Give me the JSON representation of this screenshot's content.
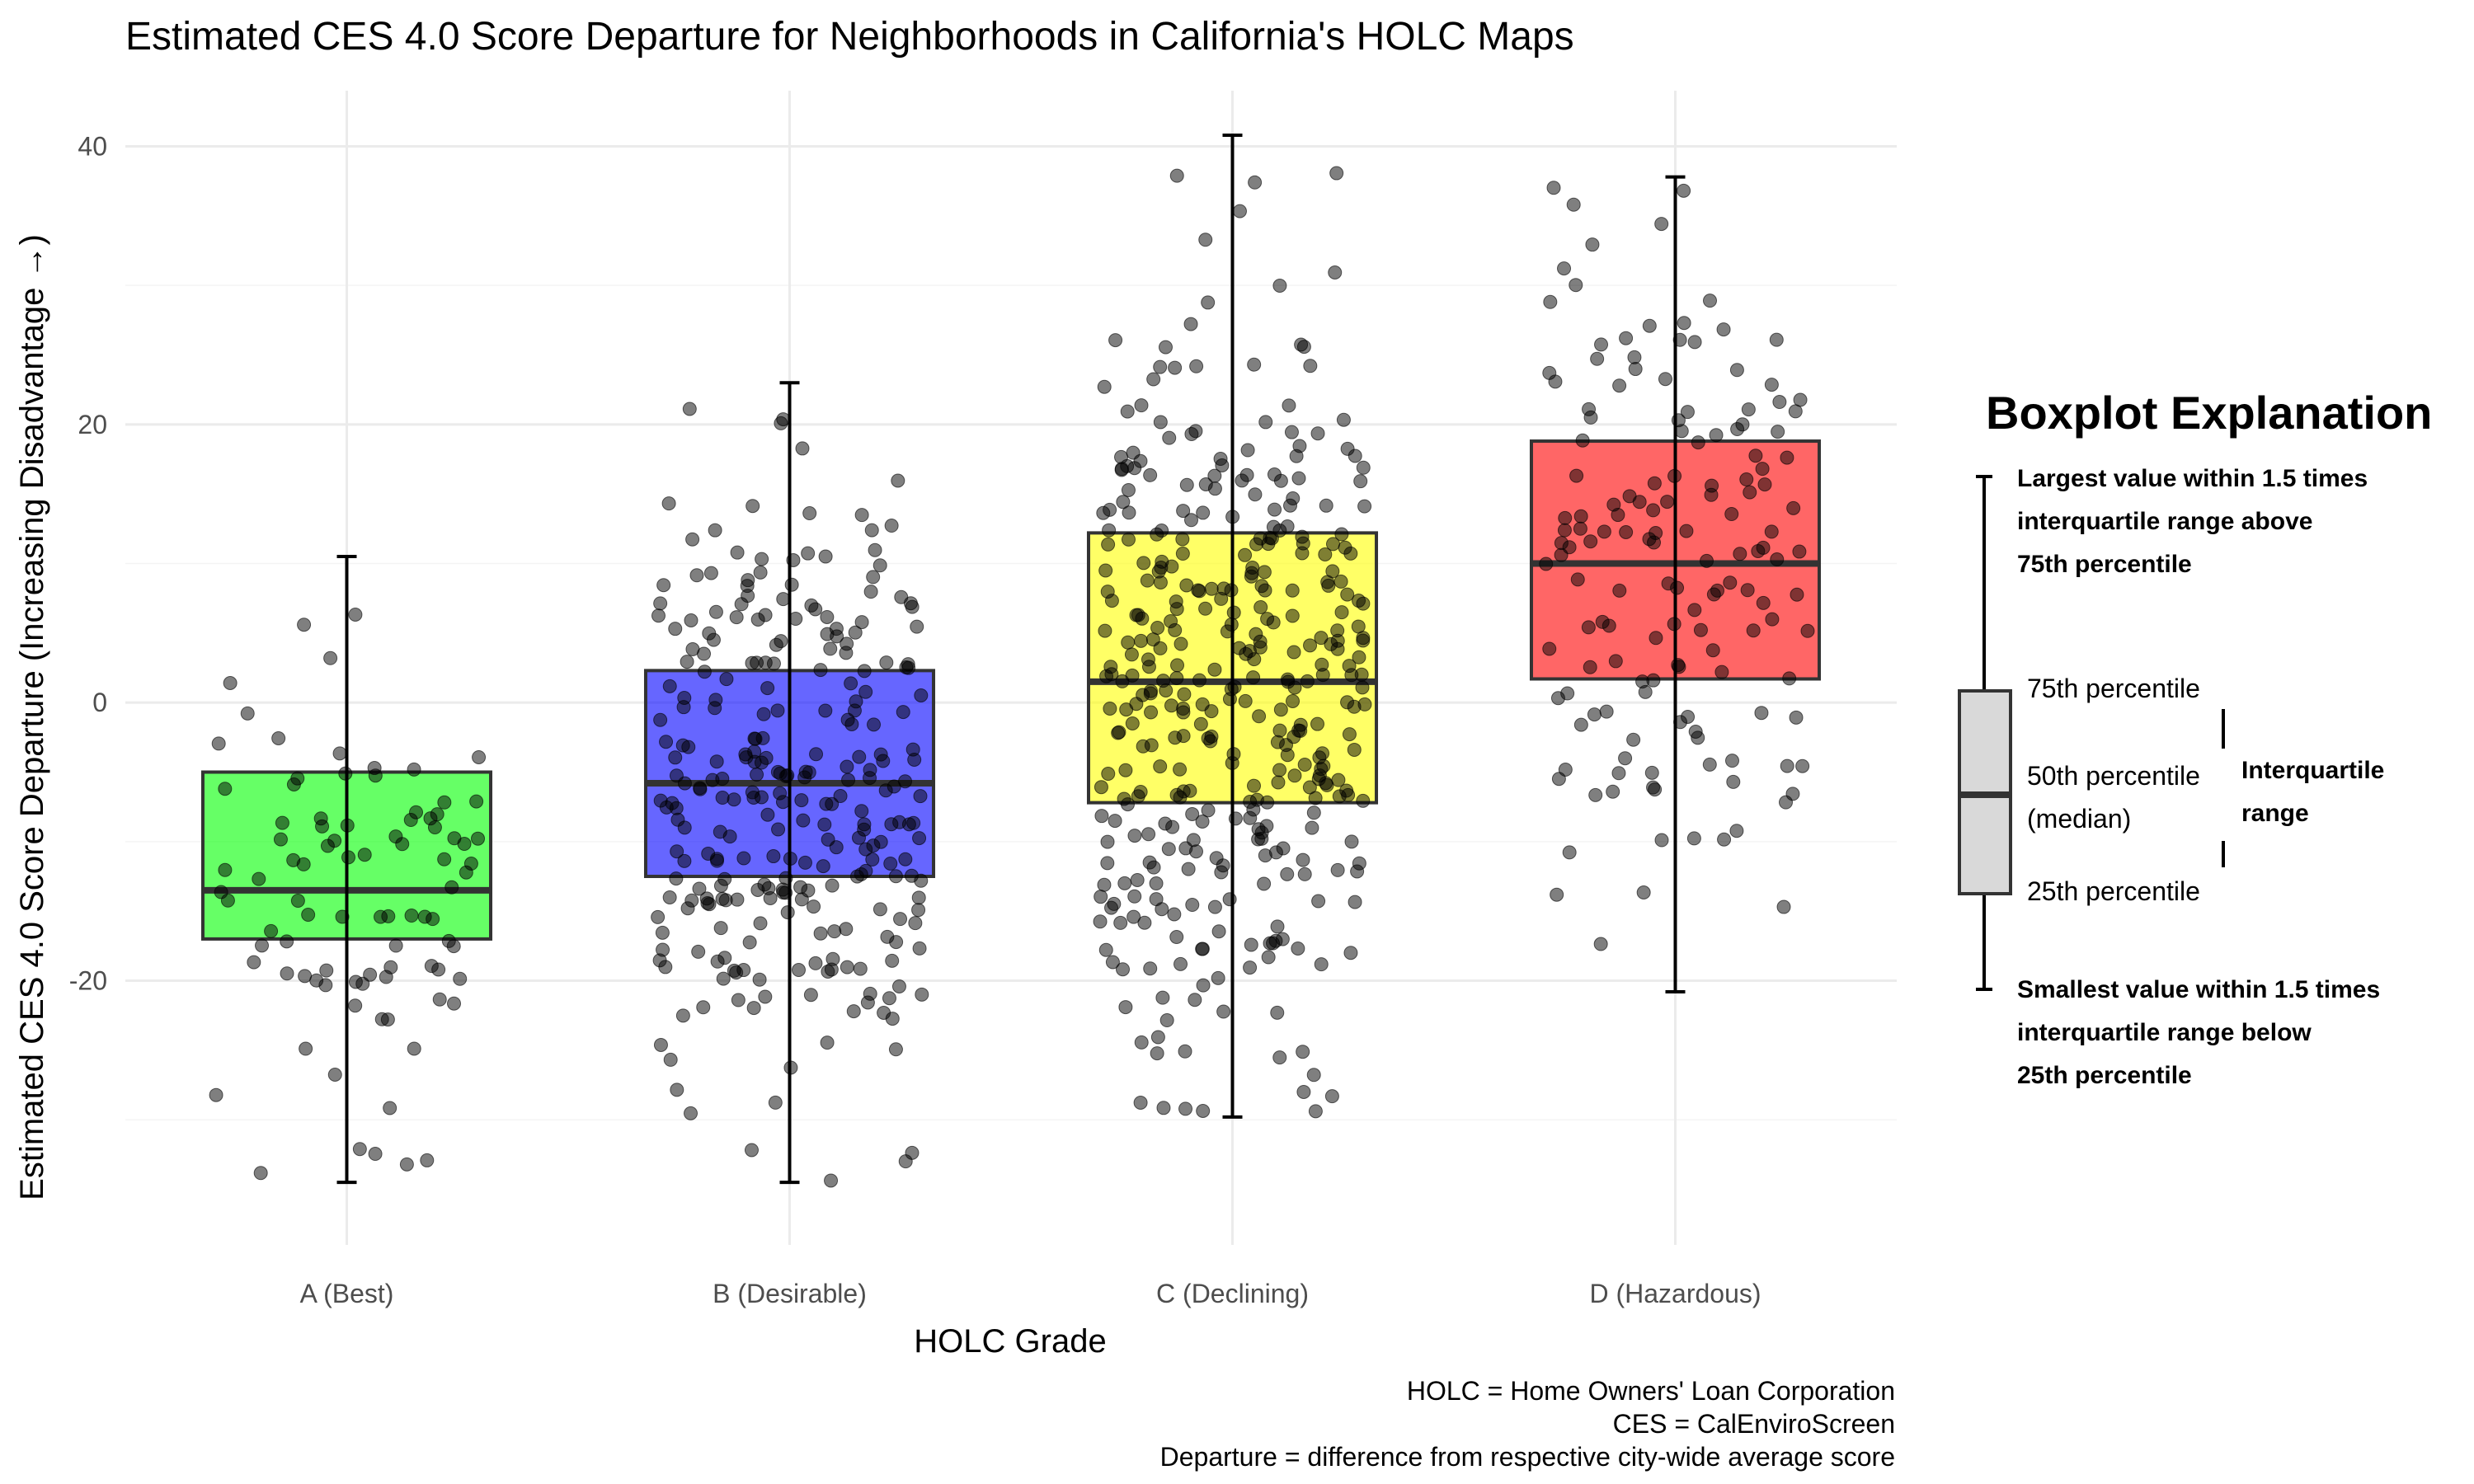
{
  "chart_data": {
    "type": "boxplot",
    "title": "Estimated CES 4.0 Score Departure for Neighborhoods in California's HOLC Maps",
    "xlabel": "HOLC Grade",
    "ylabel": "Estimated CES 4.0 Score Departure (Increasing Disadvantage →)",
    "categories": [
      "A (Best)",
      "B (Desirable)",
      "C (Declining)",
      "D (Hazardous)"
    ],
    "ylim": [
      -39,
      44
    ],
    "yticks": [
      -20,
      0,
      20,
      40
    ],
    "ytick_labels": [
      "-20",
      "0",
      "20",
      "40"
    ],
    "grid": true,
    "boxes": [
      {
        "category": "A (Best)",
        "color": "#00ff00",
        "lower_whisker": -34.5,
        "q1": -17,
        "median": -13.5,
        "q3": -5,
        "upper_whisker": 10.5,
        "n_points": 90
      },
      {
        "category": "B (Desirable)",
        "color": "#0000ff",
        "lower_whisker": -34.5,
        "q1": -12.5,
        "median": -5.8,
        "q3": 2.3,
        "upper_whisker": 23,
        "n_points": 280
      },
      {
        "category": "C (Declining)",
        "color": "#ffff00",
        "lower_whisker": -29.8,
        "q1": -7.2,
        "median": 1.5,
        "q3": 12.2,
        "upper_whisker": 40.8,
        "n_points": 380
      },
      {
        "category": "D (Hazardous)",
        "color": "#ff0000",
        "lower_whisker": -20.8,
        "q1": 1.7,
        "median": 10,
        "q3": 18.8,
        "upper_whisker": 37.8,
        "n_points": 150
      }
    ],
    "legend_placement": "right",
    "caption": [
      "HOLC = Home Owners' Loan Corporation",
      "CES = CalEnviroScreen",
      "Departure = difference from respective city-wide average score"
    ]
  },
  "legend": {
    "title": "Boxplot Explanation",
    "upper_note": [
      "Largest value within 1.5 times",
      "interquartile range above",
      "75th percentile"
    ],
    "p75": "75th percentile",
    "p50": [
      "50th percentile",
      "(median)"
    ],
    "p25": "25th percentile",
    "iqr": [
      "Interquartile",
      "range"
    ],
    "lower_note": [
      "Smallest value within 1.5 times",
      "interquartile range below",
      "25th percentile"
    ]
  }
}
